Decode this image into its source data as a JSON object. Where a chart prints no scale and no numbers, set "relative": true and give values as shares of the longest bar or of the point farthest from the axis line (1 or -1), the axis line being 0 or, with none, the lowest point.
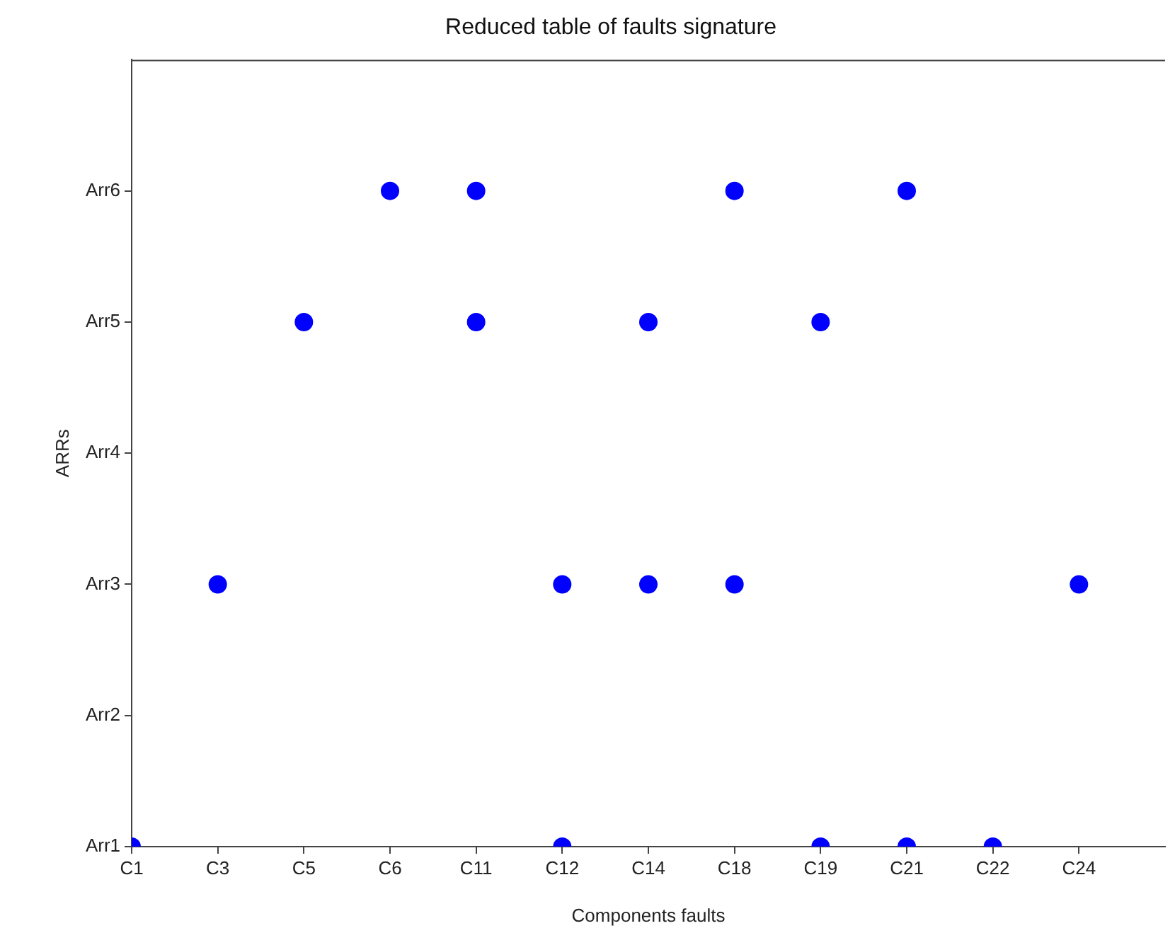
{
  "chart_data": {
    "type": "scatter",
    "title": "Reduced table of faults signature",
    "xlabel": "Components faults",
    "ylabel": "ARRs",
    "categories": [
      "C1",
      "C3",
      "C5",
      "C6",
      "C11",
      "C12",
      "C14",
      "C18",
      "C19",
      "C21",
      "C22",
      "C24"
    ],
    "y_categories": [
      "Arr6",
      "Arr5",
      "Arr4",
      "Arr3",
      "Arr2",
      "Arr1"
    ],
    "relative": true,
    "series": [
      {
        "color": "#0000ff",
        "x": [
          "C1",
          "C3",
          "C5",
          "C6",
          "C11",
          "C11",
          "C12",
          "C12",
          "C14",
          "C14",
          "C18",
          "C18",
          "C19",
          "C19",
          "C21",
          "C21",
          "C22",
          "C24"
        ],
        "values": [
          0,
          0.4,
          0.8,
          1,
          1,
          0.8,
          0.4,
          0,
          0.8,
          0.4,
          1,
          0.4,
          0.8,
          0,
          1,
          0,
          0,
          0.4
        ]
      }
    ],
    "marker": "circle",
    "grid": false,
    "legend": false
  }
}
